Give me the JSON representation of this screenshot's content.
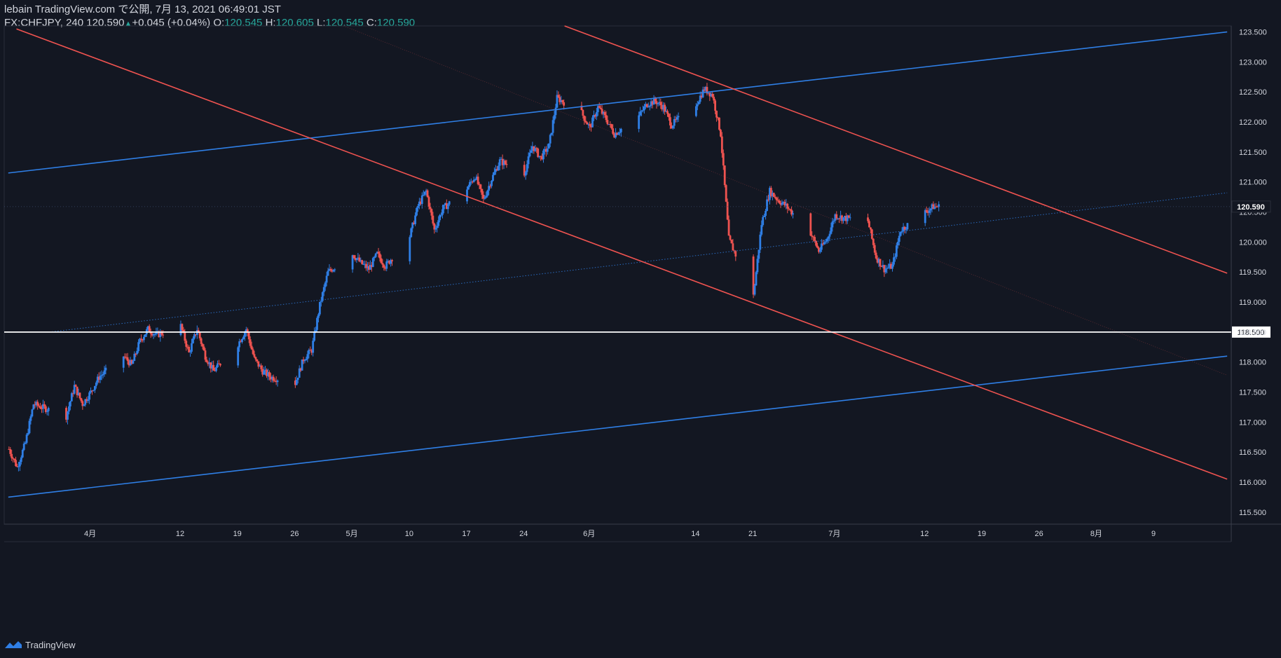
{
  "header": {
    "publish": "lebain TradingView.com で公開, 7月 13, 2021 06:49:01 JST",
    "symbol": "FX:CHFJPY, 240",
    "last": "120.590",
    "change": "+0.045 (+0.04%)",
    "o_label": "O:",
    "o_value": "120.545",
    "h_label": "H:",
    "h_value": "120.605",
    "l_label": "L:",
    "l_value": "120.545",
    "c_label": "C:",
    "c_value": "120.590"
  },
  "footer": {
    "brand": "TradingView",
    "logo_icon": "tradingview-logo-icon"
  },
  "colors": {
    "background": "#131722",
    "up": "#2f7fe6",
    "down": "#ef5350",
    "trend_blue": "#2f7fe6",
    "trend_red": "#ef5350",
    "level": "#ffffff",
    "axis_text": "#d1d4dc"
  },
  "chart_data": {
    "type": "candlestick",
    "y_ticks": [
      "115.500",
      "116.000",
      "116.500",
      "117.000",
      "117.500",
      "118.000",
      "118.500",
      "119.000",
      "119.500",
      "120.000",
      "120.500",
      "121.000",
      "121.500",
      "122.000",
      "122.500",
      "123.000",
      "123.500"
    ],
    "ylim": [
      115.3,
      123.6
    ],
    "x_ticks": [
      {
        "label": "4月",
        "date": "2021-04-01"
      },
      {
        "label": "12",
        "date": "2021-04-12"
      },
      {
        "label": "19",
        "date": "2021-04-19"
      },
      {
        "label": "26",
        "date": "2021-04-26"
      },
      {
        "label": "5月",
        "date": "2021-05-03"
      },
      {
        "label": "10",
        "date": "2021-05-10"
      },
      {
        "label": "17",
        "date": "2021-05-17"
      },
      {
        "label": "24",
        "date": "2021-05-24"
      },
      {
        "label": "6月",
        "date": "2021-06-01"
      },
      {
        "label": "14",
        "date": "2021-06-14"
      },
      {
        "label": "21",
        "date": "2021-06-21"
      },
      {
        "label": "7月",
        "date": "2021-07-01"
      },
      {
        "label": "12",
        "date": "2021-07-12"
      },
      {
        "label": "19",
        "date": "2021-07-19"
      },
      {
        "label": "26",
        "date": "2021-07-26"
      },
      {
        "label": "8月",
        "date": "2021-08-02"
      },
      {
        "label": "9",
        "date": "2021-08-09"
      }
    ],
    "price_path": [
      [
        "2021-03-22",
        116.55
      ],
      [
        "2021-03-23",
        116.25
      ],
      [
        "2021-03-24",
        116.65
      ],
      [
        "2021-03-25",
        117.3
      ],
      [
        "2021-03-26",
        117.25
      ],
      [
        "2021-03-29",
        117.1
      ],
      [
        "2021-03-30",
        117.6
      ],
      [
        "2021-03-31",
        117.3
      ],
      [
        "2021-04-01",
        117.5
      ],
      [
        "2021-04-02",
        117.75
      ],
      [
        "2021-04-05",
        118.1
      ],
      [
        "2021-04-06",
        117.95
      ],
      [
        "2021-04-07",
        118.35
      ],
      [
        "2021-04-08",
        118.55
      ],
      [
        "2021-04-09",
        118.45
      ],
      [
        "2021-04-12",
        118.6
      ],
      [
        "2021-04-13",
        118.15
      ],
      [
        "2021-04-14",
        118.55
      ],
      [
        "2021-04-15",
        118.1
      ],
      [
        "2021-04-16",
        117.85
      ],
      [
        "2021-04-19",
        118.3
      ],
      [
        "2021-04-20",
        118.55
      ],
      [
        "2021-04-21",
        118.05
      ],
      [
        "2021-04-22",
        117.85
      ],
      [
        "2021-04-23",
        117.75
      ],
      [
        "2021-04-26",
        117.65
      ],
      [
        "2021-04-27",
        118.05
      ],
      [
        "2021-04-28",
        118.2
      ],
      [
        "2021-04-29",
        118.95
      ],
      [
        "2021-04-30",
        119.5
      ],
      [
        "2021-05-03",
        119.8
      ],
      [
        "2021-05-04",
        119.65
      ],
      [
        "2021-05-05",
        119.55
      ],
      [
        "2021-05-06",
        119.8
      ],
      [
        "2021-05-07",
        119.6
      ],
      [
        "2021-05-10",
        120.1
      ],
      [
        "2021-05-11",
        120.6
      ],
      [
        "2021-05-12",
        120.85
      ],
      [
        "2021-05-13",
        120.2
      ],
      [
        "2021-05-14",
        120.55
      ],
      [
        "2021-05-17",
        120.9
      ],
      [
        "2021-05-18",
        121.1
      ],
      [
        "2021-05-19",
        120.7
      ],
      [
        "2021-05-20",
        121.05
      ],
      [
        "2021-05-21",
        121.35
      ],
      [
        "2021-05-24",
        121.15
      ],
      [
        "2021-05-25",
        121.6
      ],
      [
        "2021-05-26",
        121.4
      ],
      [
        "2021-05-27",
        121.6
      ],
      [
        "2021-05-28",
        122.4
      ],
      [
        "2021-05-31",
        122.15
      ],
      [
        "2021-06-01",
        121.9
      ],
      [
        "2021-06-02",
        122.25
      ],
      [
        "2021-06-03",
        122.05
      ],
      [
        "2021-06-04",
        121.8
      ],
      [
        "2021-06-07",
        122.1
      ],
      [
        "2021-06-08",
        122.3
      ],
      [
        "2021-06-09",
        122.35
      ],
      [
        "2021-06-10",
        122.25
      ],
      [
        "2021-06-11",
        121.95
      ],
      [
        "2021-06-14",
        122.3
      ],
      [
        "2021-06-15",
        122.55
      ],
      [
        "2021-06-16",
        122.45
      ],
      [
        "2021-06-17",
        121.8
      ],
      [
        "2021-06-18",
        120.05
      ],
      [
        "2021-06-21",
        119.1
      ],
      [
        "2021-06-22",
        120.3
      ],
      [
        "2021-06-23",
        120.85
      ],
      [
        "2021-06-24",
        120.7
      ],
      [
        "2021-06-25",
        120.6
      ],
      [
        "2021-06-28",
        120.15
      ],
      [
        "2021-06-29",
        119.85
      ],
      [
        "2021-06-30",
        120.05
      ],
      [
        "2021-07-01",
        120.45
      ],
      [
        "2021-07-02",
        120.4
      ],
      [
        "2021-07-05",
        120.35
      ],
      [
        "2021-07-06",
        119.75
      ],
      [
        "2021-07-07",
        119.55
      ],
      [
        "2021-07-08",
        119.6
      ],
      [
        "2021-07-09",
        120.2
      ],
      [
        "2021-07-12",
        120.5
      ],
      [
        "2021-07-13",
        120.59
      ]
    ],
    "trendlines": [
      {
        "color": "trend_blue",
        "style": "solid",
        "from": [
          "2021-03-22",
          121.15
        ],
        "to": [
          "2021-08-18",
          123.5
        ]
      },
      {
        "color": "trend_blue",
        "style": "solid",
        "from": [
          "2021-03-22",
          115.75
        ],
        "to": [
          "2021-08-18",
          118.1
        ]
      },
      {
        "color": "trend_blue",
        "style": "dotted",
        "from": [
          "2021-03-27",
          118.5
        ],
        "to": [
          "2021-08-18",
          120.82
        ]
      },
      {
        "color": "trend_red",
        "style": "solid",
        "from": [
          "2021-03-23",
          123.55
        ],
        "to": [
          "2021-08-18",
          116.05
        ]
      },
      {
        "color": "trend_red",
        "style": "solid",
        "from": [
          "2021-05-29",
          123.6
        ],
        "to": [
          "2021-08-18",
          119.48
        ]
      },
      {
        "color": "trend_red",
        "style": "thin",
        "from": [
          "2021-05-02",
          123.6
        ],
        "to": [
          "2021-08-18",
          117.78
        ]
      }
    ],
    "hlines": [
      {
        "value": 118.5,
        "label": "118.500",
        "color": "level"
      }
    ],
    "last_price": {
      "value": 120.59,
      "label": "120.590"
    }
  }
}
